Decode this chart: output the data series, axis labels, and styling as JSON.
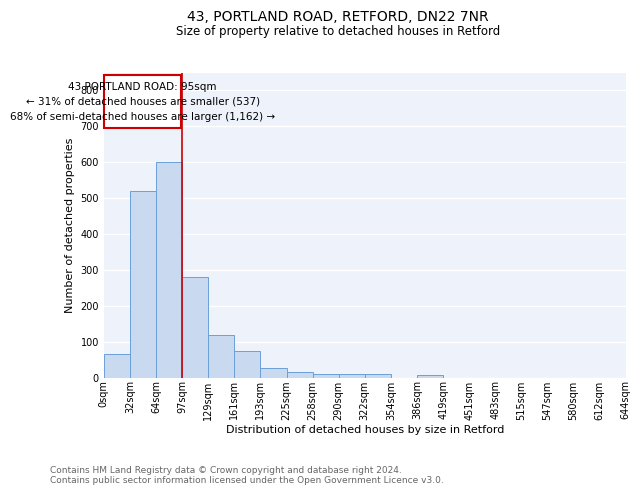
{
  "title1": "43, PORTLAND ROAD, RETFORD, DN22 7NR",
  "title2": "Size of property relative to detached houses in Retford",
  "xlabel": "Distribution of detached houses by size in Retford",
  "ylabel": "Number of detached properties",
  "bin_labels": [
    "0sqm",
    "32sqm",
    "64sqm",
    "97sqm",
    "129sqm",
    "161sqm",
    "193sqm",
    "225sqm",
    "258sqm",
    "290sqm",
    "322sqm",
    "354sqm",
    "386sqm",
    "419sqm",
    "451sqm",
    "483sqm",
    "515sqm",
    "547sqm",
    "580sqm",
    "612sqm",
    "644sqm"
  ],
  "bar_heights": [
    65,
    520,
    600,
    280,
    118,
    75,
    27,
    16,
    10,
    10,
    10,
    0,
    8,
    0,
    0,
    0,
    0,
    0,
    0,
    0
  ],
  "bar_color": "#c9d9f0",
  "bar_edge_color": "#6a9fd8",
  "vline_x": 3.0,
  "vline_color": "#cc0000",
  "annotation_text": "43 PORTLAND ROAD: 95sqm\n← 31% of detached houses are smaller (537)\n68% of semi-detached houses are larger (1,162) →",
  "annotation_box_color": "#cc0000",
  "ylim": [
    0,
    850
  ],
  "yticks": [
    0,
    100,
    200,
    300,
    400,
    500,
    600,
    700,
    800
  ],
  "bg_color": "#eef2fa",
  "grid_color": "#ffffff",
  "footer_text": "Contains HM Land Registry data © Crown copyright and database right 2024.\nContains public sector information licensed under the Open Government Licence v3.0.",
  "title1_fontsize": 10,
  "title2_fontsize": 8.5,
  "xlabel_fontsize": 8,
  "ylabel_fontsize": 8,
  "tick_fontsize": 7,
  "footer_fontsize": 6.5,
  "ann_fontsize": 7.5
}
